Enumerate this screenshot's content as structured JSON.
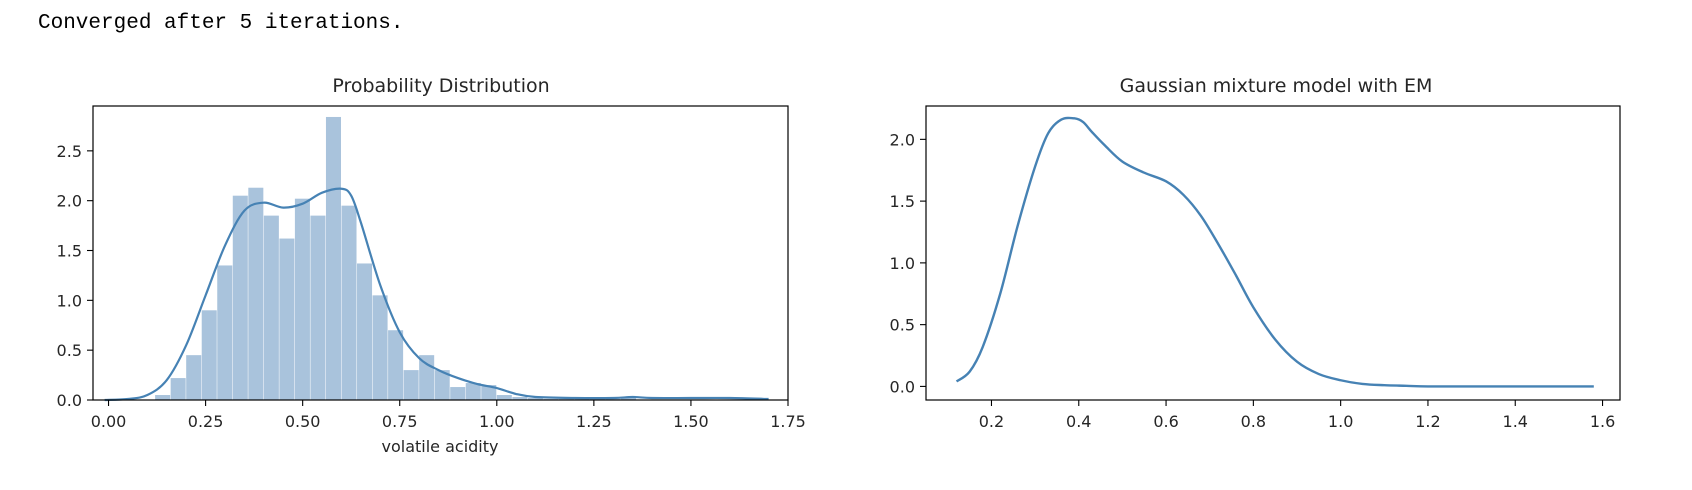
{
  "console_output": "Converged after 5 iterations.",
  "colors": {
    "line": "#4682b4",
    "hist_fill": "#a9c3dc",
    "axis": "#000000",
    "text": "#262626"
  },
  "chart_data": [
    {
      "type": "bar",
      "subtype": "histogram_with_density",
      "title": "Probability Distribution",
      "xlabel": "volatile acidity",
      "ylabel": "",
      "xlim": [
        -0.04,
        1.75
      ],
      "ylim": [
        0,
        2.95
      ],
      "xticks": [
        "0.00",
        "0.25",
        "0.50",
        "0.75",
        "1.00",
        "1.25",
        "1.50",
        "1.75"
      ],
      "xtick_values": [
        0.0,
        0.25,
        0.5,
        0.75,
        1.0,
        1.25,
        1.5,
        1.75
      ],
      "yticks": [
        "0.0",
        "0.5",
        "1.0",
        "1.5",
        "2.0",
        "2.5"
      ],
      "ytick_values": [
        0.0,
        0.5,
        1.0,
        1.5,
        2.0,
        2.5
      ],
      "bin_width": 0.04,
      "bins": {
        "x_start": [
          0.12,
          0.16,
          0.2,
          0.24,
          0.28,
          0.32,
          0.36,
          0.4,
          0.44,
          0.48,
          0.52,
          0.56,
          0.6,
          0.64,
          0.68,
          0.72,
          0.76,
          0.8,
          0.84,
          0.88,
          0.92,
          0.96,
          1.0,
          1.04,
          1.08,
          1.12,
          1.16,
          1.2,
          1.24,
          1.28,
          1.32
        ],
        "density": [
          0.05,
          0.22,
          0.45,
          0.9,
          1.35,
          2.05,
          2.13,
          1.85,
          1.62,
          2.02,
          1.85,
          2.84,
          1.95,
          1.37,
          1.05,
          0.7,
          0.3,
          0.45,
          0.3,
          0.13,
          0.17,
          0.15,
          0.05,
          0.03,
          0.02,
          0.01,
          0.01,
          0.01,
          0.01,
          0.01,
          0.02
        ]
      },
      "density_curve": {
        "x": [
          -0.01,
          0.05,
          0.1,
          0.15,
          0.2,
          0.25,
          0.3,
          0.35,
          0.4,
          0.45,
          0.5,
          0.55,
          0.6,
          0.625,
          0.65,
          0.7,
          0.75,
          0.8,
          0.85,
          0.9,
          0.95,
          1.0,
          1.05,
          1.1,
          1.2,
          1.3,
          1.35,
          1.4,
          1.5,
          1.6,
          1.7
        ],
        "y": [
          0.0,
          0.01,
          0.05,
          0.2,
          0.55,
          1.05,
          1.55,
          1.9,
          1.98,
          1.93,
          1.97,
          2.08,
          2.12,
          2.05,
          1.78,
          1.15,
          0.68,
          0.42,
          0.3,
          0.22,
          0.16,
          0.12,
          0.06,
          0.03,
          0.02,
          0.02,
          0.03,
          0.02,
          0.02,
          0.02,
          0.01
        ]
      }
    },
    {
      "type": "line",
      "title": "Gaussian mixture model with EM",
      "xlabel": "",
      "ylabel": "",
      "xlim": [
        0.05,
        1.64
      ],
      "ylim": [
        -0.11,
        2.27
      ],
      "xticks": [
        "0.2",
        "0.4",
        "0.6",
        "0.8",
        "1.0",
        "1.2",
        "1.4",
        "1.6"
      ],
      "xtick_values": [
        0.2,
        0.4,
        0.6,
        0.8,
        1.0,
        1.2,
        1.4,
        1.6
      ],
      "yticks": [
        "0.0",
        "0.5",
        "1.0",
        "1.5",
        "2.0"
      ],
      "ytick_values": [
        0.0,
        0.5,
        1.0,
        1.5,
        2.0
      ],
      "series": [
        {
          "x": [
            0.12,
            0.15,
            0.18,
            0.22,
            0.26,
            0.3,
            0.33,
            0.36,
            0.39,
            0.41,
            0.43,
            0.46,
            0.5,
            0.55,
            0.6,
            0.64,
            0.68,
            0.72,
            0.76,
            0.8,
            0.85,
            0.9,
            0.95,
            1.0,
            1.05,
            1.1,
            1.15,
            1.2,
            1.3,
            1.4,
            1.5,
            1.58
          ],
          "y": [
            0.04,
            0.12,
            0.32,
            0.75,
            1.3,
            1.78,
            2.05,
            2.16,
            2.17,
            2.14,
            2.06,
            1.95,
            1.82,
            1.73,
            1.66,
            1.55,
            1.38,
            1.15,
            0.9,
            0.64,
            0.38,
            0.2,
            0.1,
            0.05,
            0.02,
            0.01,
            0.005,
            0.0,
            0.0,
            0.0,
            0.0,
            0.0
          ]
        }
      ]
    }
  ]
}
